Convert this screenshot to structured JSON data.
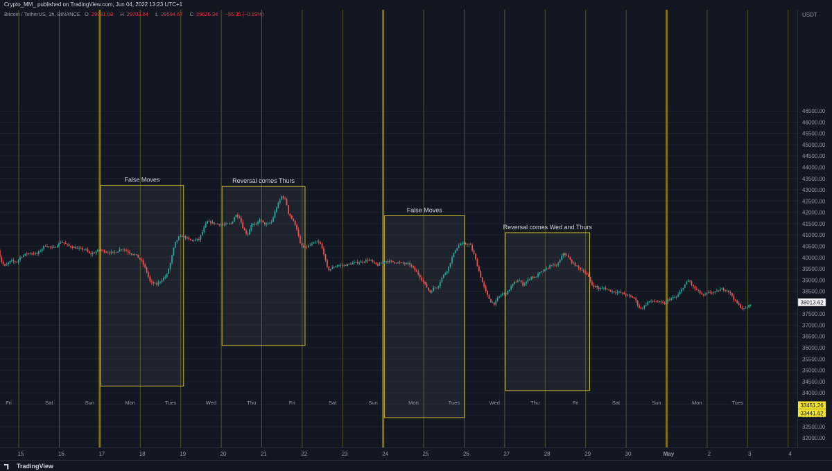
{
  "header": {
    "published": "Crypto_MM_ published on TradingView.com, Jun 04, 2022 13:23 UTC+1"
  },
  "ohlc": {
    "symbol": "Bitcoin / TetherUS, 1h, BINANCE",
    "o_label": "O",
    "o": "29681.68",
    "h_label": "H",
    "h": "29703.64",
    "l_label": "L",
    "l": "29594.67",
    "c_label": "C",
    "c": "29626.34",
    "change": "−55.35 (−0.19%)"
  },
  "footer": {
    "brand": "TradingView"
  },
  "colors": {
    "background": "#131722",
    "grid": "#1e222d",
    "up": "#26a69a",
    "down": "#ef5350",
    "session_line": "#6b6b1e",
    "session_line_bold": "#8c7a14",
    "box": "#c9b52c",
    "box_fill": "rgba(120,123,134,0.12)",
    "axis_text": "#9598a1",
    "price_label_bg": "#ffffff",
    "price_label_text": "#131722",
    "yellow_label_bg": "#f5e327"
  },
  "chart_data": {
    "type": "candlestick",
    "title": "",
    "ylabel": "",
    "currency_label": "USDT",
    "ylim": [
      31700,
      47000
    ],
    "y_ticks": [
      32000,
      32500,
      33000,
      33500,
      34000,
      34500,
      35000,
      35500,
      36000,
      36500,
      37000,
      37500,
      38000,
      38500,
      39000,
      39500,
      40000,
      40500,
      41000,
      41500,
      42000,
      42500,
      43000,
      43500,
      44000,
      44500,
      45000,
      45500,
      46000,
      46500
    ],
    "x_date_ticks": [
      {
        "label": "15",
        "day": 15
      },
      {
        "label": "16",
        "day": 16
      },
      {
        "label": "17",
        "day": 17
      },
      {
        "label": "18",
        "day": 18
      },
      {
        "label": "19",
        "day": 19
      },
      {
        "label": "20",
        "day": 20
      },
      {
        "label": "21",
        "day": 21
      },
      {
        "label": "22",
        "day": 22
      },
      {
        "label": "23",
        "day": 23
      },
      {
        "label": "24",
        "day": 24
      },
      {
        "label": "25",
        "day": 25
      },
      {
        "label": "26",
        "day": 26
      },
      {
        "label": "27",
        "day": 27
      },
      {
        "label": "28",
        "day": 28
      },
      {
        "label": "29",
        "day": 29
      },
      {
        "label": "30",
        "day": 30
      },
      {
        "label": "May",
        "day": 31
      },
      {
        "label": "2",
        "day": 32
      },
      {
        "label": "3",
        "day": 33
      },
      {
        "label": "4",
        "day": 34
      }
    ],
    "weekday_labels": [
      {
        "label": "Fri",
        "day": 14.7
      },
      {
        "label": "Sat",
        "day": 15.7
      },
      {
        "label": "Sun",
        "day": 16.7
      },
      {
        "label": "Mon",
        "day": 17.7
      },
      {
        "label": "Tues",
        "day": 18.7
      },
      {
        "label": "Wed",
        "day": 19.7
      },
      {
        "label": "Thu",
        "day": 20.7
      },
      {
        "label": "Fri",
        "day": 21.7
      },
      {
        "label": "Sat",
        "day": 22.7
      },
      {
        "label": "Sun",
        "day": 23.7
      },
      {
        "label": "Mon",
        "day": 24.7
      },
      {
        "label": "Tues",
        "day": 25.7
      },
      {
        "label": "Wed",
        "day": 26.7
      },
      {
        "label": "Thu",
        "day": 27.7
      },
      {
        "label": "Fri",
        "day": 28.7
      },
      {
        "label": "Sat",
        "day": 29.7
      },
      {
        "label": "Sun",
        "day": 30.7
      },
      {
        "label": "Mon",
        "day": 31.7
      },
      {
        "label": "Tues",
        "day": 32.7
      }
    ],
    "session_lines": [
      14.95,
      15.95,
      16.95,
      17.95,
      18.95,
      19.95,
      20.95,
      21.95,
      22.95,
      23.95,
      24.95,
      25.95,
      26.95,
      27.95,
      28.95,
      29.95,
      30.95,
      31.95,
      32.95,
      33.95
    ],
    "bold_session_lines": [
      16.95,
      23.95,
      30.95
    ],
    "boxes": [
      {
        "label": "False Moves",
        "x0": 16.97,
        "x1": 19.02,
        "y0": 34300,
        "y1": 43200
      },
      {
        "label": "Reversal comes Thurs",
        "x0": 19.97,
        "x1": 22.02,
        "y0": 36100,
        "y1": 43150
      },
      {
        "label": "False Moves",
        "x0": 23.98,
        "x1": 25.96,
        "y0": 32900,
        "y1": 41850
      },
      {
        "label": "Reversal comes Wed and Thurs",
        "x0": 26.97,
        "x1": 29.05,
        "y0": 34100,
        "y1": 41100
      }
    ],
    "price_levels": [
      {
        "value": 38013.62,
        "label": "38013.62",
        "style": "white"
      },
      {
        "value": 33451.26,
        "label": "33451.26",
        "style": "yellow"
      },
      {
        "value": 33441.62,
        "label": "33441.62",
        "style": "yellow"
      }
    ],
    "path": [
      [
        14.4,
        40700
      ],
      [
        14.5,
        39900
      ],
      [
        14.6,
        39600
      ],
      [
        14.75,
        39850
      ],
      [
        14.9,
        39800
      ],
      [
        15.0,
        40050
      ],
      [
        15.2,
        40200
      ],
      [
        15.4,
        40150
      ],
      [
        15.6,
        40550
      ],
      [
        15.8,
        40400
      ],
      [
        16.0,
        40700
      ],
      [
        16.2,
        40500
      ],
      [
        16.4,
        40400
      ],
      [
        16.6,
        40350
      ],
      [
        16.7,
        40150
      ],
      [
        16.8,
        40200
      ],
      [
        16.95,
        40350
      ],
      [
        17.1,
        40250
      ],
      [
        17.3,
        40200
      ],
      [
        17.5,
        40400
      ],
      [
        17.7,
        40200
      ],
      [
        17.85,
        40100
      ],
      [
        18.0,
        39800
      ],
      [
        18.1,
        39400
      ],
      [
        18.2,
        38900
      ],
      [
        18.35,
        38800
      ],
      [
        18.5,
        39050
      ],
      [
        18.6,
        39200
      ],
      [
        18.7,
        39800
      ],
      [
        18.8,
        40600
      ],
      [
        18.9,
        40900
      ],
      [
        19.0,
        40950
      ],
      [
        19.2,
        40750
      ],
      [
        19.4,
        40800
      ],
      [
        19.5,
        41200
      ],
      [
        19.6,
        41600
      ],
      [
        19.8,
        41500
      ],
      [
        20.0,
        41450
      ],
      [
        20.2,
        41500
      ],
      [
        20.3,
        41900
      ],
      [
        20.4,
        41800
      ],
      [
        20.5,
        41250
      ],
      [
        20.6,
        41000
      ],
      [
        20.7,
        41500
      ],
      [
        20.8,
        41400
      ],
      [
        20.9,
        41700
      ],
      [
        21.0,
        41500
      ],
      [
        21.1,
        41450
      ],
      [
        21.2,
        41600
      ],
      [
        21.3,
        42150
      ],
      [
        21.45,
        42750
      ],
      [
        21.55,
        42500
      ],
      [
        21.6,
        42000
      ],
      [
        21.7,
        41700
      ],
      [
        21.8,
        41400
      ],
      [
        21.9,
        40600
      ],
      [
        22.0,
        40400
      ],
      [
        22.15,
        40550
      ],
      [
        22.3,
        40700
      ],
      [
        22.4,
        40600
      ],
      [
        22.5,
        40100
      ],
      [
        22.55,
        39600
      ],
      [
        22.6,
        39450
      ],
      [
        22.7,
        39550
      ],
      [
        22.8,
        39650
      ],
      [
        23.0,
        39650
      ],
      [
        23.2,
        39750
      ],
      [
        23.4,
        39800
      ],
      [
        23.6,
        39900
      ],
      [
        23.8,
        39650
      ],
      [
        24.0,
        39850
      ],
      [
        24.2,
        39800
      ],
      [
        24.4,
        39750
      ],
      [
        24.6,
        39700
      ],
      [
        24.8,
        39300
      ],
      [
        24.95,
        38900
      ],
      [
        25.1,
        38450
      ],
      [
        25.2,
        38650
      ],
      [
        25.3,
        38700
      ],
      [
        25.4,
        39100
      ],
      [
        25.55,
        39500
      ],
      [
        25.65,
        40000
      ],
      [
        25.75,
        40400
      ],
      [
        25.85,
        40600
      ],
      [
        26.0,
        40600
      ],
      [
        26.1,
        40550
      ],
      [
        26.2,
        40100
      ],
      [
        26.3,
        39500
      ],
      [
        26.4,
        38900
      ],
      [
        26.5,
        38400
      ],
      [
        26.6,
        38050
      ],
      [
        26.7,
        37950
      ],
      [
        26.8,
        38250
      ],
      [
        26.9,
        38400
      ],
      [
        27.0,
        38400
      ],
      [
        27.1,
        38700
      ],
      [
        27.2,
        38900
      ],
      [
        27.3,
        39000
      ],
      [
        27.4,
        38800
      ],
      [
        27.5,
        38950
      ],
      [
        27.6,
        39150
      ],
      [
        27.7,
        39100
      ],
      [
        27.8,
        39300
      ],
      [
        27.9,
        39400
      ],
      [
        28.0,
        39500
      ],
      [
        28.1,
        39700
      ],
      [
        28.2,
        39600
      ],
      [
        28.3,
        39800
      ],
      [
        28.4,
        40200
      ],
      [
        28.5,
        40050
      ],
      [
        28.6,
        39800
      ],
      [
        28.7,
        39650
      ],
      [
        28.8,
        39500
      ],
      [
        28.9,
        39400
      ],
      [
        29.0,
        39200
      ],
      [
        29.1,
        38800
      ],
      [
        29.2,
        38700
      ],
      [
        29.3,
        38600
      ],
      [
        29.4,
        38650
      ],
      [
        29.6,
        38500
      ],
      [
        29.8,
        38450
      ],
      [
        30.0,
        38300
      ],
      [
        30.15,
        38200
      ],
      [
        30.3,
        37700
      ],
      [
        30.4,
        37850
      ],
      [
        30.5,
        38050
      ],
      [
        30.7,
        38050
      ],
      [
        30.9,
        37950
      ],
      [
        31.0,
        38150
      ],
      [
        31.2,
        38250
      ],
      [
        31.4,
        38800
      ],
      [
        31.5,
        39000
      ],
      [
        31.6,
        38700
      ],
      [
        31.7,
        38550
      ],
      [
        31.85,
        38300
      ],
      [
        32.0,
        38450
      ],
      [
        32.15,
        38450
      ],
      [
        32.3,
        38600
      ],
      [
        32.45,
        38550
      ],
      [
        32.55,
        38350
      ],
      [
        32.65,
        38050
      ],
      [
        32.75,
        37850
      ],
      [
        32.85,
        37700
      ],
      [
        32.95,
        37800
      ],
      [
        33.05,
        38000
      ]
    ]
  }
}
